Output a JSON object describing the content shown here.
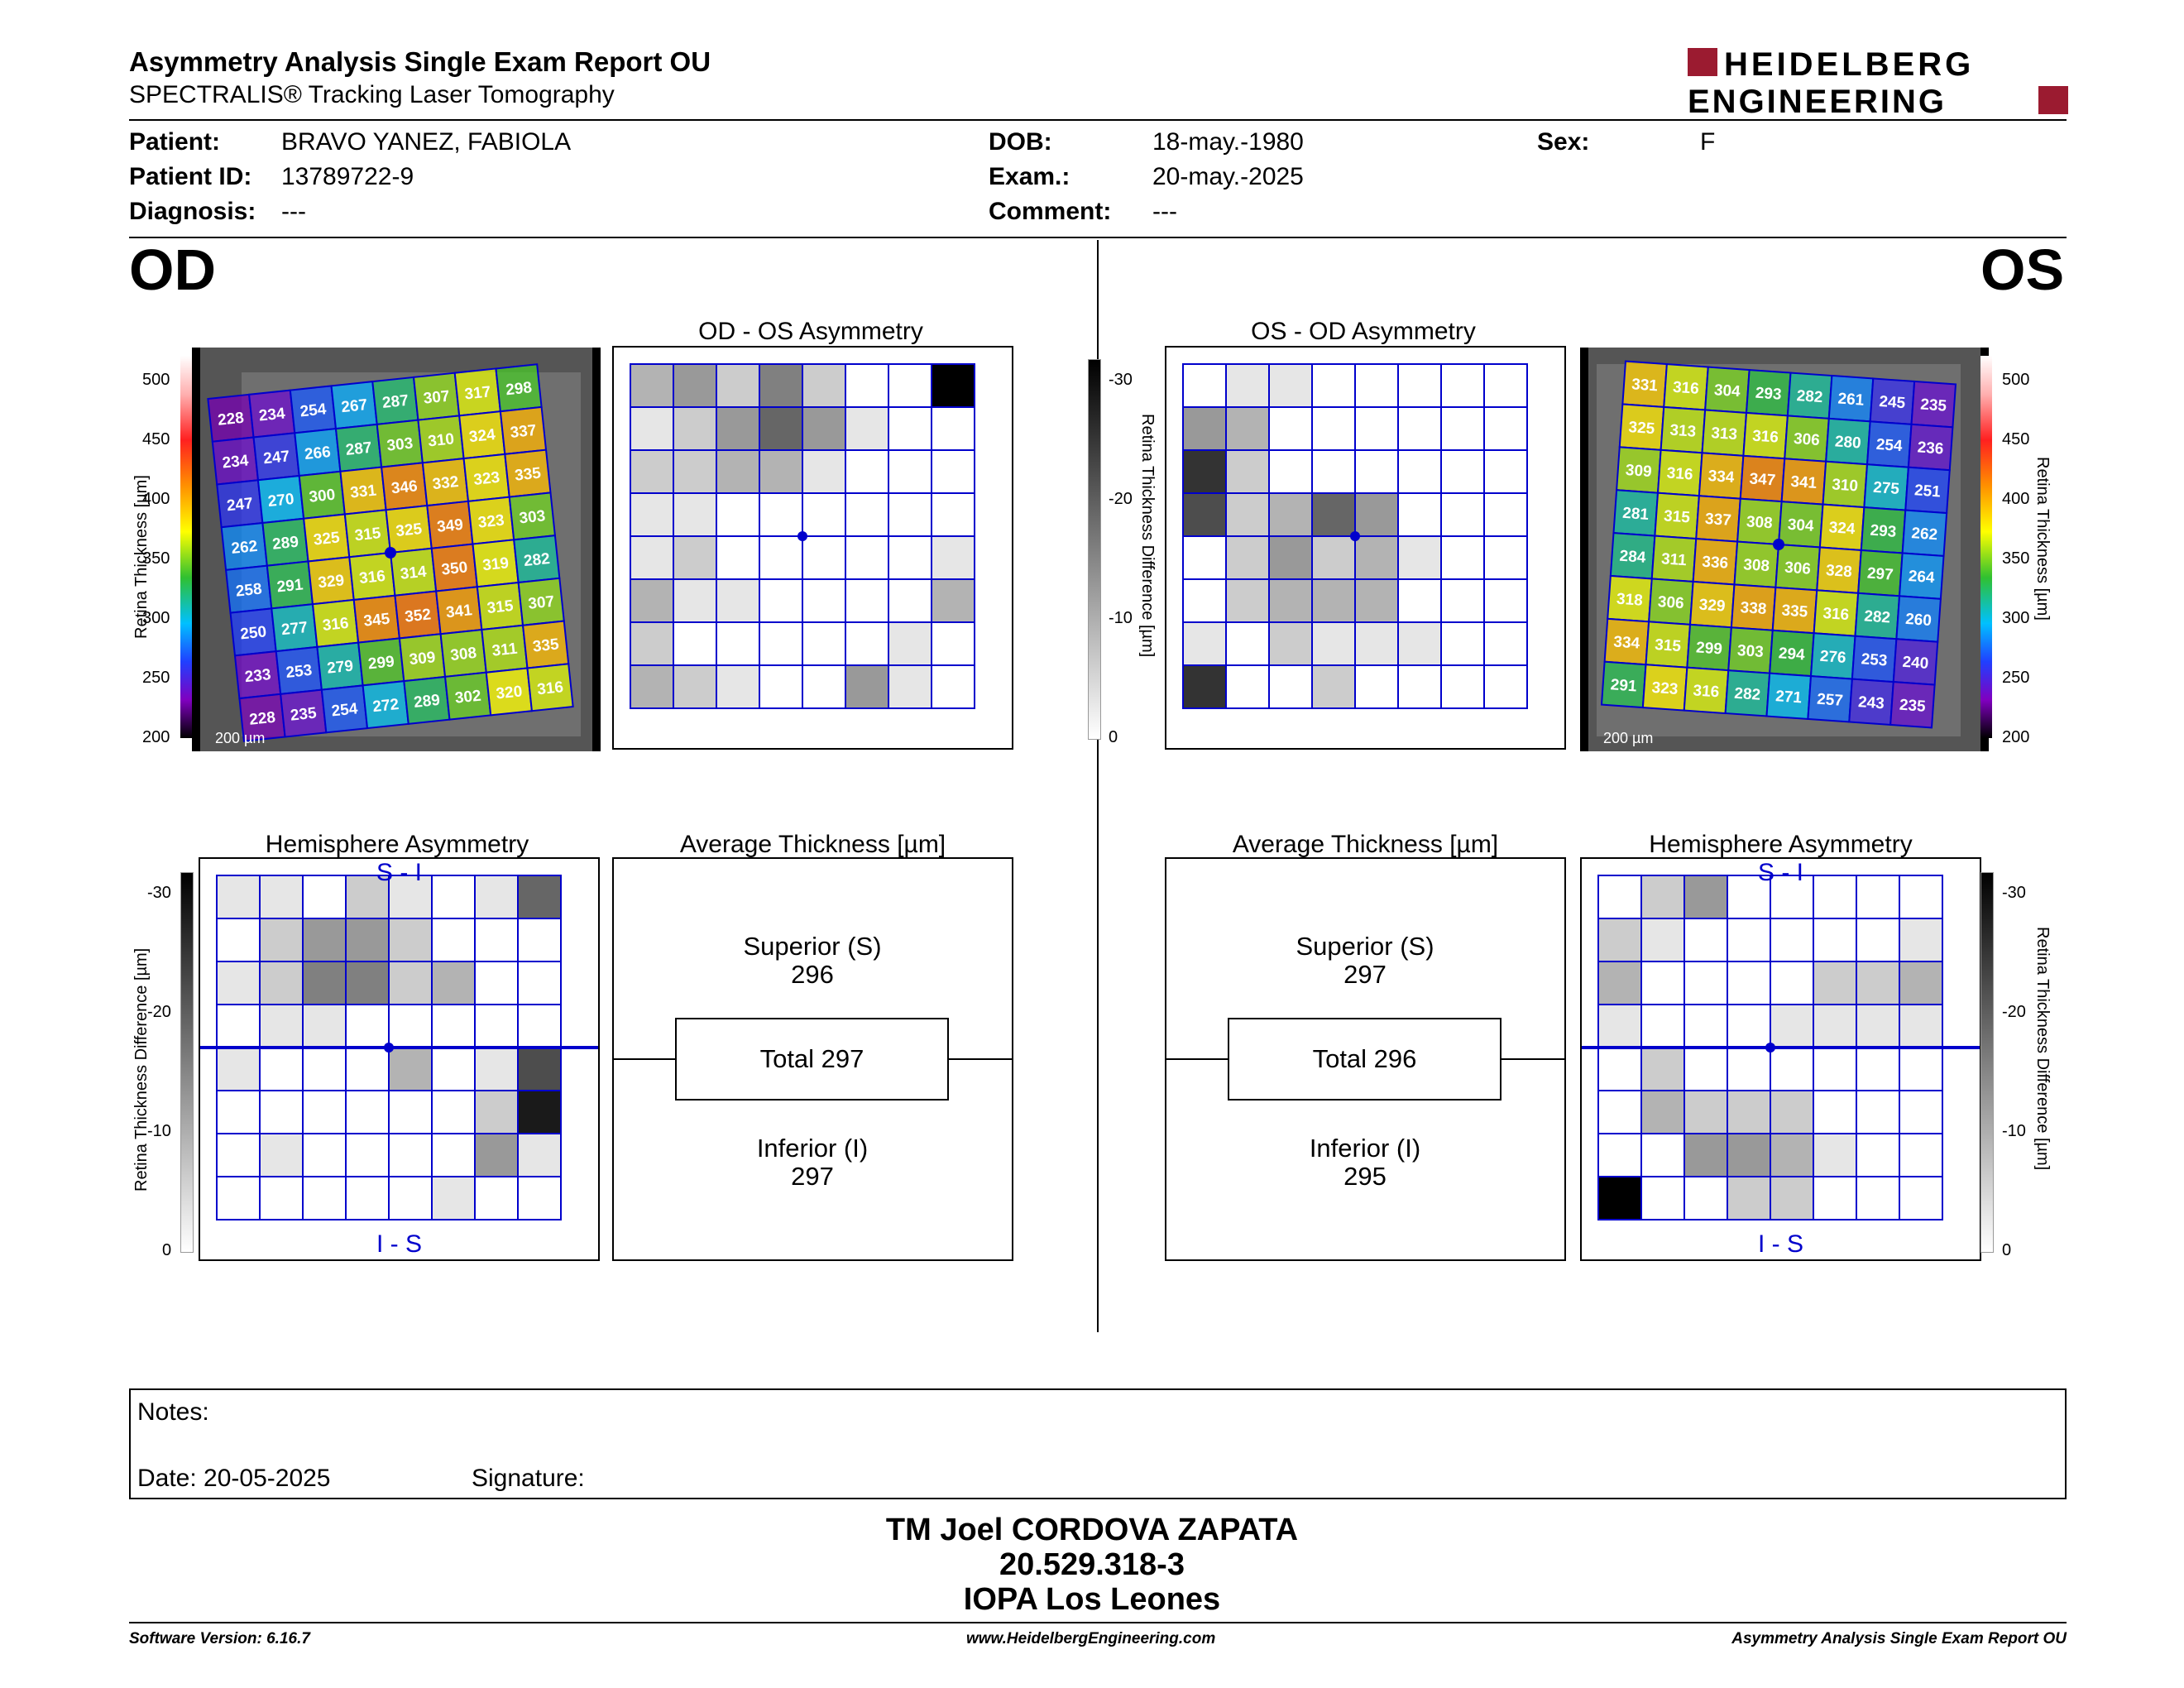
{
  "header": {
    "title": "Asymmetry Analysis Single Exam Report OU",
    "subtitle": "SPECTRALIS® Tracking Laser Tomography",
    "logo_line1": "HEIDELBERG",
    "logo_line2": "ENGINEERING"
  },
  "patient": {
    "name_label": "Patient:",
    "name": "BRAVO YANEZ, FABIOLA",
    "id_label": "Patient ID:",
    "id": "13789722-9",
    "diagnosis_label": "Diagnosis:",
    "diagnosis": "---",
    "dob_label": "DOB:",
    "dob": "18-may.-1980",
    "exam_label": "Exam.:",
    "exam": "20-may.-2025",
    "comment_label": "Comment:",
    "comment": "---",
    "sex_label": "Sex:",
    "sex": "F"
  },
  "od": {
    "eye": "OD",
    "asym_title": "OD - OS Asymmetry",
    "hemi_title": "Hemisphere Asymmetry",
    "avg_title": "Average Thickness [µm]",
    "superior_label": "Superior (S)",
    "superior": "296",
    "total_label": "Total 297",
    "inferior_label": "Inferior (I)",
    "inferior": "297",
    "scale_label": "200 µm",
    "thickness_grid": [
      [
        228,
        234,
        254,
        267,
        287,
        307,
        317,
        298
      ],
      [
        234,
        247,
        266,
        287,
        303,
        310,
        324,
        337
      ],
      [
        247,
        270,
        300,
        331,
        346,
        332,
        323,
        335
      ],
      [
        262,
        289,
        325,
        315,
        325,
        349,
        323,
        303
      ],
      [
        258,
        291,
        329,
        316,
        314,
        350,
        319,
        282
      ],
      [
        250,
        277,
        316,
        345,
        352,
        341,
        315,
        307
      ],
      [
        233,
        253,
        279,
        299,
        309,
        308,
        311,
        335
      ],
      [
        228,
        235,
        254,
        272,
        289,
        302,
        320,
        316
      ]
    ],
    "asym_grid": [
      [
        3,
        4,
        2,
        5,
        2,
        0,
        0,
        10
      ],
      [
        1,
        2,
        4,
        6,
        4,
        1,
        0,
        0
      ],
      [
        2,
        2,
        3,
        3,
        1,
        0,
        0,
        0
      ],
      [
        1,
        1,
        0,
        0,
        0,
        0,
        0,
        0
      ],
      [
        1,
        2,
        0,
        0,
        0,
        0,
        0,
        1
      ],
      [
        3,
        1,
        1,
        0,
        0,
        0,
        0,
        3
      ],
      [
        2,
        0,
        0,
        0,
        0,
        0,
        1,
        0
      ],
      [
        3,
        2,
        1,
        0,
        0,
        4,
        1,
        0
      ]
    ],
    "hemi_grid": [
      [
        1,
        1,
        0,
        2,
        1,
        0,
        1,
        6
      ],
      [
        0,
        2,
        4,
        4,
        2,
        0,
        0,
        0
      ],
      [
        1,
        2,
        5,
        5,
        2,
        3,
        0,
        0
      ],
      [
        0,
        1,
        1,
        0,
        0,
        0,
        0,
        0
      ],
      [
        1,
        0,
        0,
        0,
        3,
        0,
        1,
        7
      ],
      [
        0,
        0,
        0,
        0,
        0,
        0,
        2,
        9
      ],
      [
        0,
        1,
        0,
        0,
        0,
        0,
        4,
        1
      ],
      [
        0,
        0,
        0,
        0,
        0,
        1,
        0,
        0
      ]
    ],
    "hemi_top": "S - I",
    "hemi_bottom": "I - S"
  },
  "os": {
    "eye": "OS",
    "asym_title": "OS - OD Asymmetry",
    "hemi_title": "Hemisphere Asymmetry",
    "avg_title": "Average Thickness [µm]",
    "superior_label": "Superior (S)",
    "superior": "297",
    "total_label": "Total 296",
    "inferior_label": "Inferior (I)",
    "inferior": "295",
    "scale_label": "200 µm",
    "thickness_grid": [
      [
        331,
        316,
        304,
        293,
        282,
        261,
        245,
        235
      ],
      [
        325,
        313,
        313,
        316,
        306,
        280,
        254,
        236
      ],
      [
        309,
        316,
        334,
        347,
        341,
        310,
        275,
        251
      ],
      [
        281,
        315,
        337,
        308,
        304,
        324,
        293,
        262
      ],
      [
        284,
        311,
        336,
        308,
        306,
        328,
        297,
        264
      ],
      [
        318,
        306,
        329,
        338,
        335,
        316,
        282,
        260
      ],
      [
        334,
        315,
        299,
        303,
        294,
        276,
        253,
        240
      ],
      [
        291,
        323,
        316,
        282,
        271,
        257,
        243,
        235
      ]
    ],
    "asym_grid": [
      [
        0,
        1,
        1,
        0,
        0,
        0,
        0,
        0
      ],
      [
        4,
        3,
        0,
        0,
        0,
        0,
        0,
        0
      ],
      [
        8,
        2,
        0,
        0,
        0,
        0,
        0,
        0
      ],
      [
        7,
        2,
        3,
        6,
        4,
        0,
        0,
        0
      ],
      [
        0,
        2,
        4,
        2,
        3,
        1,
        0,
        0
      ],
      [
        0,
        2,
        3,
        3,
        3,
        0,
        0,
        0
      ],
      [
        1,
        0,
        2,
        1,
        1,
        1,
        0,
        0
      ],
      [
        8,
        0,
        0,
        2,
        0,
        0,
        0,
        0
      ]
    ],
    "hemi_grid": [
      [
        0,
        2,
        4,
        0,
        0,
        0,
        0,
        0
      ],
      [
        2,
        1,
        0,
        0,
        0,
        0,
        0,
        1
      ],
      [
        3,
        0,
        0,
        0,
        0,
        2,
        2,
        3
      ],
      [
        1,
        0,
        0,
        0,
        1,
        1,
        1,
        1
      ],
      [
        0,
        2,
        0,
        0,
        0,
        0,
        0,
        0
      ],
      [
        0,
        3,
        2,
        2,
        2,
        0,
        0,
        0
      ],
      [
        0,
        0,
        4,
        4,
        3,
        1,
        0,
        0
      ],
      [
        10,
        0,
        0,
        2,
        2,
        0,
        0,
        0
      ]
    ],
    "hemi_top": "S - I",
    "hemi_bottom": "I - S"
  },
  "thickness_axis": {
    "label": "Retina Thickness [µm]",
    "ticks": [
      "500",
      "450",
      "400",
      "350",
      "300",
      "250",
      "200"
    ]
  },
  "diff_axis": {
    "label": "Retina Thickness Difference [µm]",
    "ticks": [
      "-30",
      "-20",
      "-10",
      "0"
    ]
  },
  "notes": {
    "label": "Notes:",
    "date": "Date: 20-05-2025",
    "signature": "Signature:"
  },
  "signer": {
    "name": "TM Joel CORDOVA ZAPATA",
    "rut": "20.529.318-3",
    "place": "IOPA Los Leones"
  },
  "footer": {
    "software": "Software Version: 6.16.7",
    "url": "www.HeidelbergEngineering.com",
    "report": "Asymmetry Analysis Single Exam Report OU"
  },
  "colors": {
    "grid_blue": "#0000cc",
    "logo_red": "#9b1b30"
  }
}
